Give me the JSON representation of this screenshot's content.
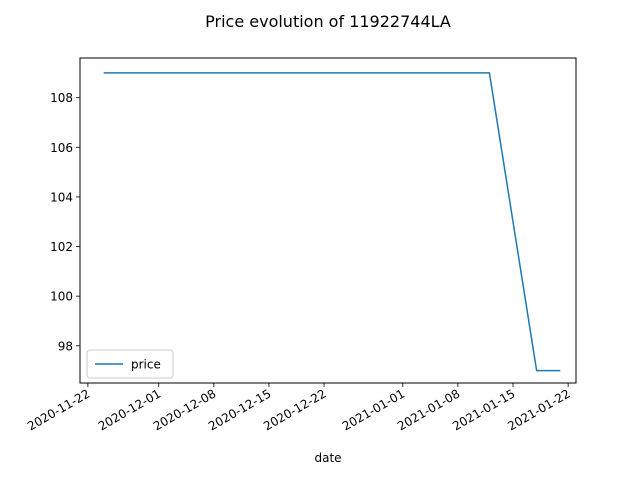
{
  "chart_data": {
    "type": "line",
    "title": "Price evolution of 11922744LA",
    "xlabel": "date",
    "ylabel": "",
    "x_type": "date",
    "x_ticks": [
      "2020-11-22",
      "2020-12-01",
      "2020-12-08",
      "2020-12-15",
      "2020-12-22",
      "2021-01-01",
      "2021-01-08",
      "2021-01-15",
      "2021-01-22"
    ],
    "y_ticks": [
      98,
      100,
      102,
      104,
      106,
      108
    ],
    "xlim": [
      "2020-11-21",
      "2021-01-23"
    ],
    "ylim": [
      96.5,
      109.6
    ],
    "grid": false,
    "legend_position": "lower-left",
    "series": [
      {
        "name": "price",
        "color": "#1f77b4",
        "points": [
          {
            "x": "2020-11-24",
            "y": 109
          },
          {
            "x": "2021-01-12",
            "y": 109
          },
          {
            "x": "2021-01-18",
            "y": 97
          },
          {
            "x": "2021-01-21",
            "y": 97
          }
        ]
      }
    ]
  }
}
